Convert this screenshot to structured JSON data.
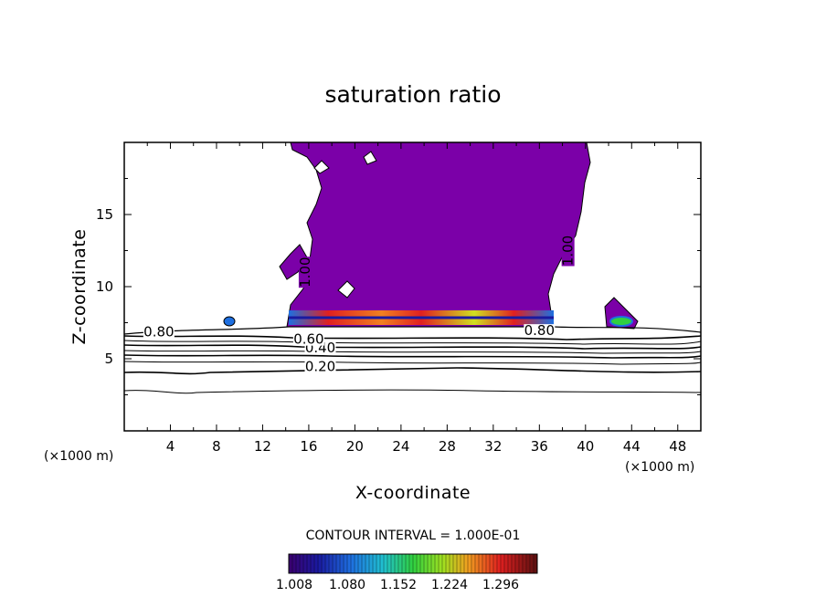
{
  "chart_data": {
    "type": "heatmap",
    "title": "saturation ratio",
    "xlabel": "X-coordinate",
    "ylabel": "Z-coordinate",
    "x_unit": "(×1000 m)",
    "xlim": [
      0,
      50
    ],
    "ylim": [
      0,
      20
    ],
    "x_ticks": [
      4,
      8,
      12,
      16,
      20,
      24,
      28,
      32,
      36,
      40,
      44,
      48
    ],
    "y_ticks": [
      5,
      10,
      15
    ],
    "contour_interval_label": "CONTOUR INTERVAL = 1.000E-01",
    "contour_labels": [
      {
        "text": "0.20",
        "x": 17,
        "y": 4.2
      },
      {
        "text": "0.40",
        "x": 17,
        "y": 5.5
      },
      {
        "text": "0.60",
        "x": 16,
        "y": 6.1
      },
      {
        "text": "0.80",
        "x": 3,
        "y": 6.6
      },
      {
        "text": "0.80",
        "x": 36,
        "y": 6.7
      },
      {
        "text": "1.00",
        "x": 16,
        "y": 11
      },
      {
        "text": "1.00",
        "x": 38.8,
        "y": 12.5
      }
    ],
    "colorbar": {
      "ticks": [
        "1.008",
        "1.080",
        "1.152",
        "1.224",
        "1.296"
      ],
      "range": [
        1.0,
        1.33
      ],
      "colors": [
        "#6a0da8",
        "#1a1aa0",
        "#1e6fe0",
        "#20c0d0",
        "#30d040",
        "#d0e020",
        "#f08020",
        "#e02020",
        "#601010"
      ]
    },
    "supersaturated_fill_color": "#7b00a8",
    "contour_levels": [
      0.2,
      0.4,
      0.6,
      0.8,
      1.0
    ]
  }
}
